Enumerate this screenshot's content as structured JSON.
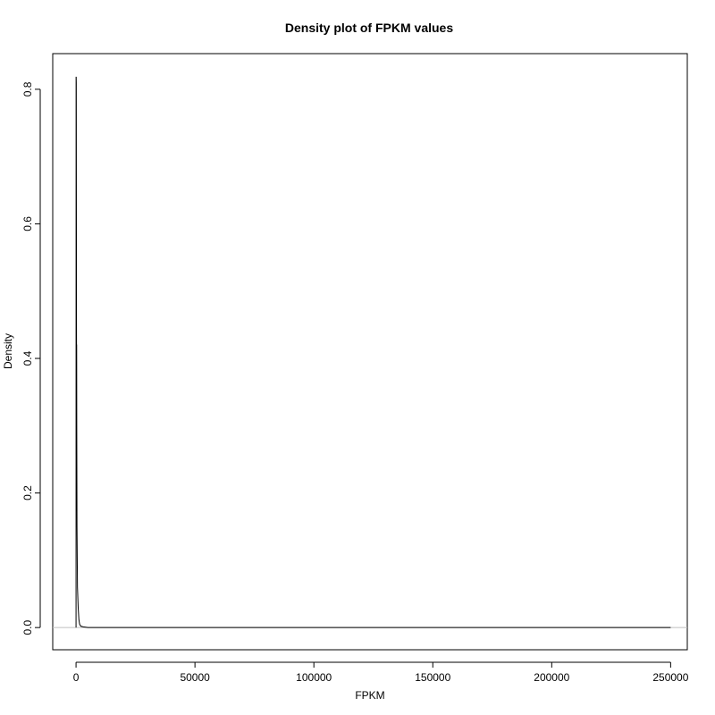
{
  "chart_data": {
    "type": "line",
    "title": "Density plot of FPKM values",
    "xlabel": "FPKM",
    "ylabel": "Density",
    "xlim": [
      -9800,
      257000
    ],
    "ylim": [
      -0.033,
      0.853
    ],
    "x_ticks": [
      0,
      50000,
      100000,
      150000,
      200000,
      250000
    ],
    "x_tick_labels": [
      "0",
      "50000",
      "100000",
      "150000",
      "200000",
      "250000"
    ],
    "y_ticks": [
      0.0,
      0.2,
      0.4,
      0.6,
      0.8
    ],
    "y_tick_labels": [
      "0.0",
      "0.2",
      "0.4",
      "0.6",
      "0.8"
    ],
    "grid": false,
    "baseline": {
      "y": 0,
      "color": "#bfbfbf"
    },
    "series": [
      {
        "color": "#000000",
        "x": [
          0,
          20,
          60,
          100,
          150,
          200,
          260,
          300,
          400,
          600,
          900,
          1200,
          1500,
          2000,
          3000,
          5000,
          20000,
          250000
        ],
        "y": [
          0.0,
          0.818,
          0.818,
          0.81,
          0.6,
          0.42,
          0.42,
          0.3,
          0.15,
          0.06,
          0.03,
          0.012,
          0.005,
          0.002,
          0.001,
          0.0,
          0.0,
          0.0
        ]
      }
    ]
  }
}
